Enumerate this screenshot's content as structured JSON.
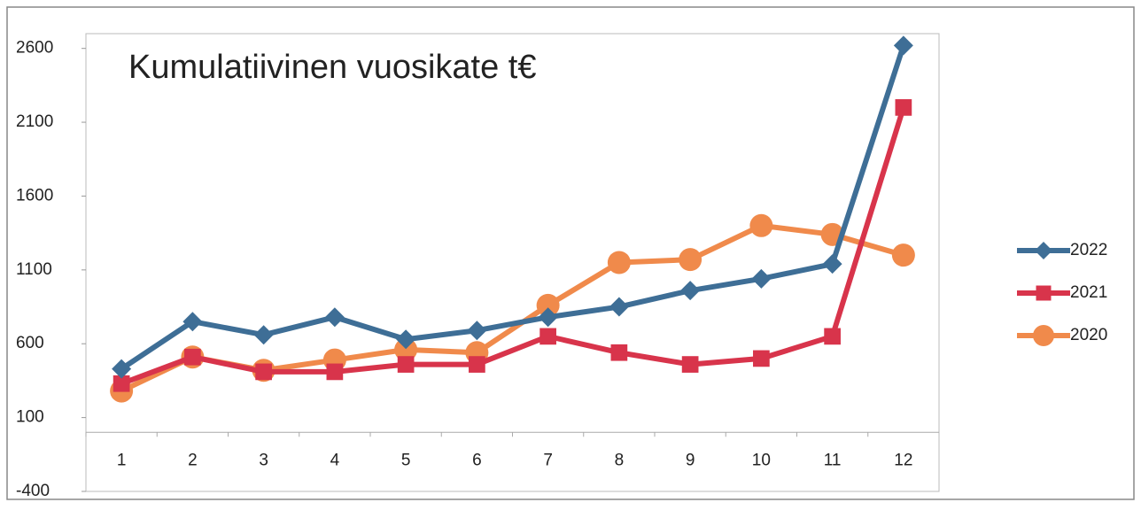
{
  "chart_data": {
    "type": "line",
    "title": "Kumulatiivinen vuosikate t€",
    "categories": [
      "1",
      "2",
      "3",
      "4",
      "5",
      "6",
      "7",
      "8",
      "9",
      "10",
      "11",
      "12"
    ],
    "series": [
      {
        "name": "2022",
        "color": "#3e6e96",
        "marker": "diamond",
        "values": [
          430,
          750,
          660,
          780,
          630,
          690,
          780,
          850,
          960,
          1040,
          1140,
          2620
        ]
      },
      {
        "name": "2021",
        "color": "#d8344b",
        "marker": "square",
        "values": [
          330,
          510,
          410,
          410,
          460,
          460,
          650,
          540,
          460,
          500,
          650,
          2200
        ]
      },
      {
        "name": "2020",
        "color": "#f08a4b",
        "marker": "circle",
        "values": [
          280,
          510,
          420,
          490,
          560,
          540,
          860,
          1150,
          1170,
          1400,
          1340,
          1200
        ]
      }
    ],
    "ylim": [
      -400,
      2700
    ],
    "yticks": [
      -400,
      100,
      600,
      1100,
      1600,
      2100,
      2600
    ],
    "grid": false,
    "legend": "right"
  }
}
